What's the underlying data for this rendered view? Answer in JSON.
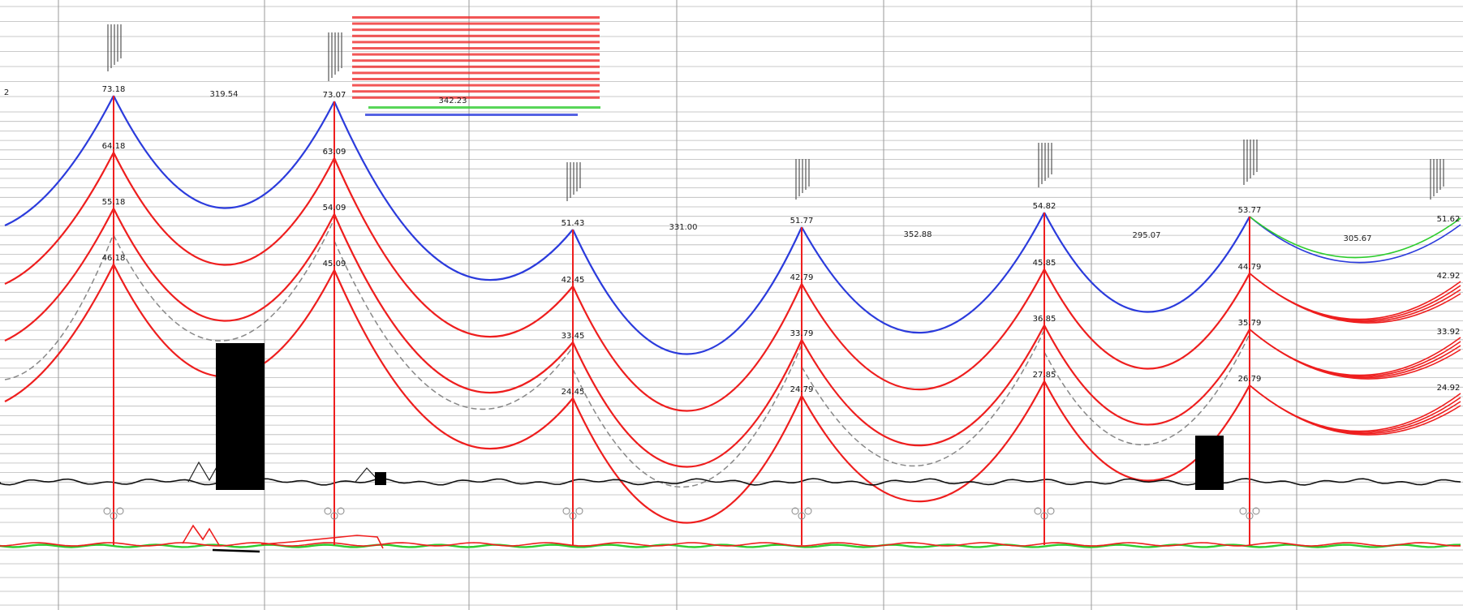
{
  "profile": {
    "towers": [
      {
        "top": "73.18",
        "levels": [
          "64.18",
          "55.18",
          "46.18"
        ]
      },
      {
        "top": "73.07",
        "levels": [
          "63.09",
          "54.09",
          "45.09"
        ]
      },
      {
        "top": "51.43",
        "levels": [
          "42.45",
          "33.45",
          "24.45"
        ]
      },
      {
        "top": "51.77",
        "levels": [
          "42.79",
          "33.79",
          "24.79"
        ]
      },
      {
        "top": "54.82",
        "levels": [
          "45.85",
          "36.85",
          "27.85"
        ]
      },
      {
        "top": "53.77",
        "levels": [
          "44.79",
          "35.79",
          "26.79"
        ]
      },
      {
        "top": "51.62",
        "levels": [
          "42.92",
          "33.92",
          "24.92"
        ]
      }
    ],
    "spans": [
      "319.54",
      "",
      "331.00",
      "352.88",
      "295.07",
      "305.67"
    ],
    "left_edge_label": "2",
    "midspan_label": "342.23",
    "colors": {
      "earth_wire": "#2b3bdc",
      "conductor": "#ee1e1e",
      "ground_clearance": "#888888",
      "terrain": "#111111",
      "section_line_green": "#2ecc2e",
      "grid": "#b8b8b8"
    }
  }
}
